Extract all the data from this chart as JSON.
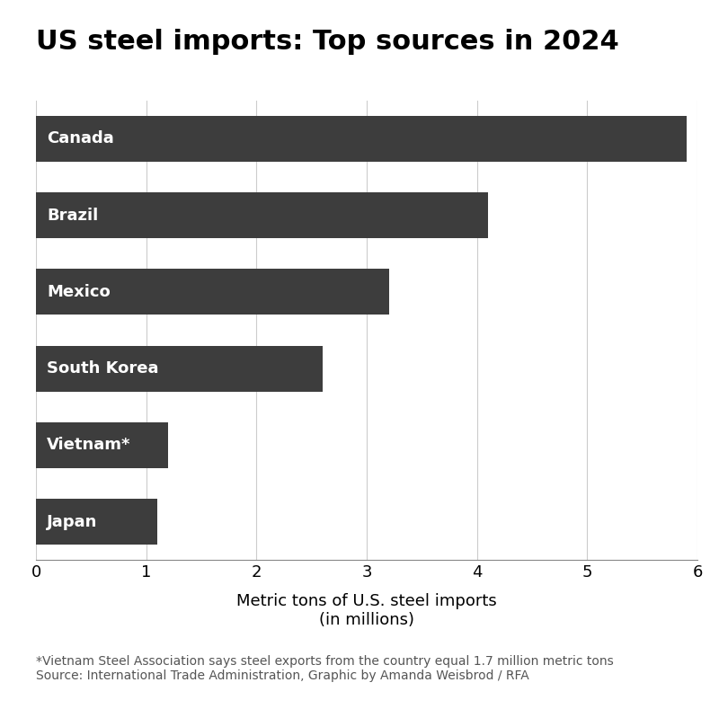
{
  "title": "US steel imports: Top sources in 2024",
  "categories": [
    "Canada",
    "Brazil",
    "Mexico",
    "South Korea",
    "Vietnam*",
    "Japan"
  ],
  "values": [
    5.9,
    4.1,
    3.2,
    2.6,
    1.2,
    1.1
  ],
  "bar_color": "#3d3d3d",
  "background_color": "#ffffff",
  "xlabel_line1": "Metric tons of U.S. steel imports",
  "xlabel_line2": "(in millions)",
  "xlim": [
    0,
    6
  ],
  "xticks": [
    0,
    1,
    2,
    3,
    4,
    5,
    6
  ],
  "footnote_line1": "*Vietnam Steel Association says steel exports from the country equal 1.7 million metric tons",
  "footnote_line2": "Source: International Trade Administration, Graphic by Amanda Weisbrod / RFA",
  "title_fontsize": 22,
  "label_fontsize": 13,
  "tick_fontsize": 13,
  "footnote_fontsize": 10,
  "bar_label_fontsize": 13,
  "bar_label_color": "#ffffff",
  "grid_color": "#cccccc",
  "bar_height": 0.6
}
